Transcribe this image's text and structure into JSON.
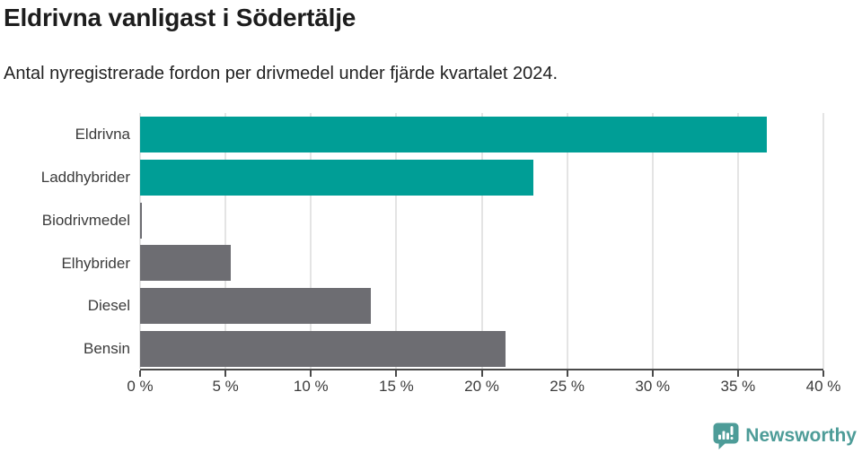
{
  "chart_data": {
    "type": "bar",
    "orientation": "horizontal",
    "title": "Eldrivna vanligast i Södertälje",
    "subtitle": "Antal nyregistrerade fordon per drivmedel under fjärde kvartalet 2024.",
    "categories": [
      "Eldrivna",
      "Laddhybrider",
      "Biodrivmedel",
      "Elhybrider",
      "Diesel",
      "Bensin"
    ],
    "values": [
      36.7,
      23.0,
      0.1,
      5.3,
      13.5,
      21.4
    ],
    "unit": "%",
    "highlighted": [
      true,
      true,
      false,
      false,
      false,
      false
    ],
    "xlim": [
      0,
      40
    ],
    "x_tick_values": [
      0,
      5,
      10,
      15,
      20,
      25,
      30,
      35,
      40
    ],
    "x_tick_labels": [
      "0 %",
      "5 %",
      "10 %",
      "15 %",
      "20 %",
      "25 %",
      "30 %",
      "35 %",
      "40 %"
    ],
    "grid": "vertical-only",
    "legend": "none",
    "colors": {
      "highlight_bar": "#009e96",
      "default_bar": "#6d6d72",
      "gridline": "#e4e4e4",
      "axis": "#4a4a4a",
      "label_text": "#3b3b3b"
    }
  },
  "footer": {
    "brand": "Newsworthy",
    "logo_icon": "newsworthy-chart-bubble-icon",
    "brand_color": "#4d9c98"
  }
}
